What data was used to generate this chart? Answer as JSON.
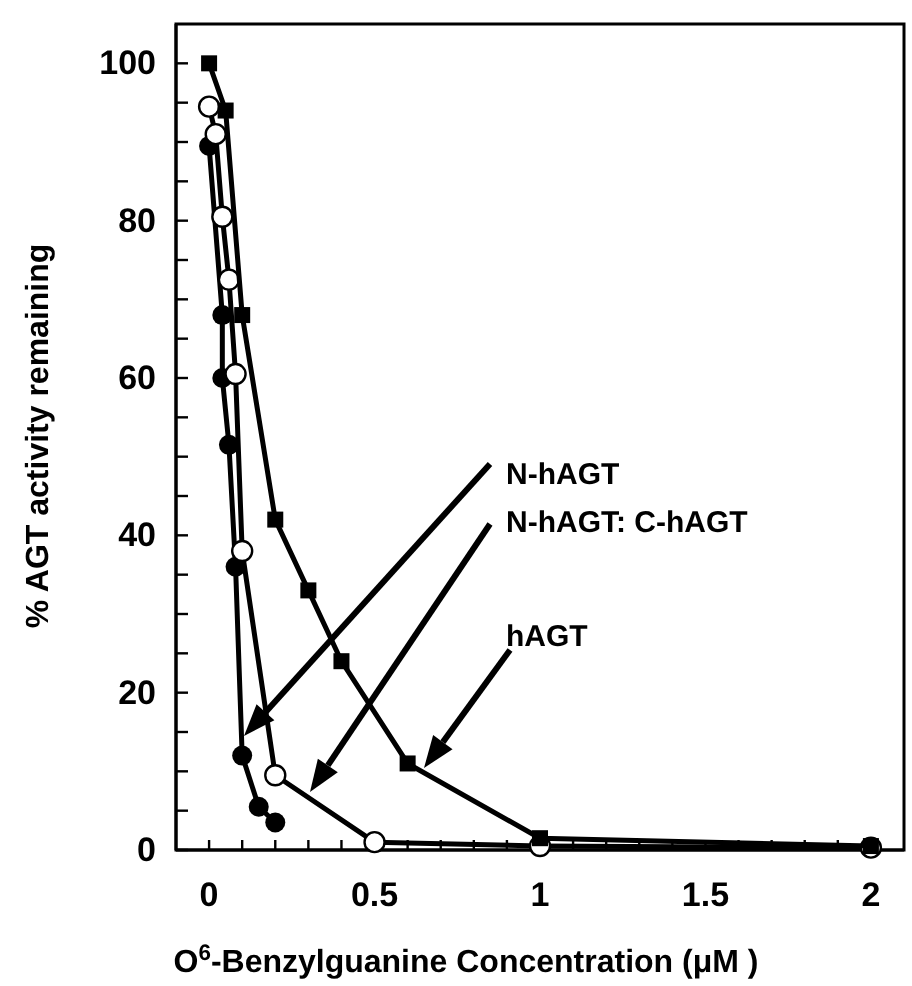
{
  "chart_data": {
    "type": "line",
    "xlabel": "O$^{6}$-Benzylguanine Concentration (μM )",
    "ylabel": "% AGT activity remaining",
    "xlim": [
      -0.1,
      2.1
    ],
    "ylim": [
      0,
      105
    ],
    "xticks": [
      {
        "value": 0,
        "label": "0"
      },
      {
        "value": 0.1,
        "label": null
      },
      {
        "value": 0.2,
        "label": null
      },
      {
        "value": 0.3,
        "label": null
      },
      {
        "value": 0.4,
        "label": null
      },
      {
        "value": 0.5,
        "label": "0.5"
      },
      {
        "value": 0.6,
        "label": null
      },
      {
        "value": 0.7,
        "label": null
      },
      {
        "value": 0.8,
        "label": null
      },
      {
        "value": 0.9,
        "label": null
      },
      {
        "value": 1,
        "label": "1"
      },
      {
        "value": 1.1,
        "label": null
      },
      {
        "value": 1.2,
        "label": null
      },
      {
        "value": 1.3,
        "label": null
      },
      {
        "value": 1.4,
        "label": null
      },
      {
        "value": 1.5,
        "label": "1.5"
      },
      {
        "value": 1.6,
        "label": null
      },
      {
        "value": 1.7,
        "label": null
      },
      {
        "value": 1.8,
        "label": null
      },
      {
        "value": 1.9,
        "label": null
      },
      {
        "value": 2,
        "label": "2"
      }
    ],
    "yticks": [
      {
        "value": 0,
        "label": "0"
      },
      {
        "value": 5,
        "label": null
      },
      {
        "value": 10,
        "label": null
      },
      {
        "value": 15,
        "label": null
      },
      {
        "value": 20,
        "label": "20"
      },
      {
        "value": 25,
        "label": null
      },
      {
        "value": 30,
        "label": null
      },
      {
        "value": 35,
        "label": null
      },
      {
        "value": 40,
        "label": "40"
      },
      {
        "value": 45,
        "label": null
      },
      {
        "value": 50,
        "label": null
      },
      {
        "value": 55,
        "label": null
      },
      {
        "value": 60,
        "label": "60"
      },
      {
        "value": 65,
        "label": null
      },
      {
        "value": 70,
        "label": null
      },
      {
        "value": 75,
        "label": null
      },
      {
        "value": 80,
        "label": "80"
      },
      {
        "value": 85,
        "label": null
      },
      {
        "value": 90,
        "label": null
      },
      {
        "value": 95,
        "label": null
      },
      {
        "value": 100,
        "label": "100"
      }
    ],
    "grid": false,
    "series": [
      {
        "color": "#000000",
        "marker": "square",
        "x": [
          0,
          0.05,
          0.1,
          0.2,
          0.3,
          0.4,
          0.6,
          1,
          2
        ],
        "values": [
          100,
          94,
          68,
          42,
          33,
          24,
          11,
          1.5,
          0.5
        ]
      },
      {
        "color": "#000000",
        "marker": "open-circle",
        "x": [
          0,
          0.02,
          0.04,
          0.06,
          0.08,
          0.1,
          0.2,
          0.5,
          1,
          2
        ],
        "values": [
          94.5,
          91,
          80.5,
          72.5,
          60.5,
          38,
          9.5,
          1,
          0.5,
          0.3
        ]
      },
      {
        "color": "#000000",
        "marker": "circle",
        "x": [
          0,
          0.04,
          0.04,
          0.06,
          0.08,
          0.1,
          0.15,
          0.2
        ],
        "values": [
          89.5,
          68,
          60,
          51.5,
          36,
          12,
          5.5,
          3.5
        ]
      }
    ],
    "annotations": [
      "N-hAGT",
      "N-hAGT: C-hAGT",
      "hAGT"
    ]
  }
}
